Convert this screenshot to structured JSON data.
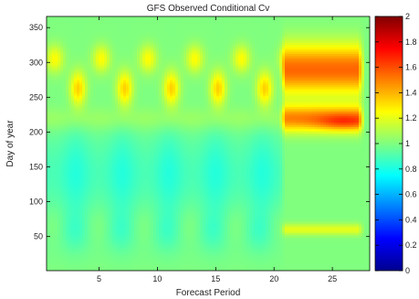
{
  "chart_data": {
    "type": "heatmap",
    "title": "GFS Observed Conditional Cv",
    "xlabel": "Forecast Period",
    "ylabel": "Day of year",
    "xlim": [
      0.5,
      28.2
    ],
    "ylim": [
      1,
      366
    ],
    "xticks": [
      5,
      10,
      15,
      20,
      25
    ],
    "yticks": [
      50,
      100,
      150,
      200,
      250,
      300,
      350
    ],
    "colorbar": {
      "colormap": "jet",
      "range": [
        0,
        2
      ],
      "ticks": [
        "0",
        "0.2",
        "0.4",
        "0.6",
        "0.8",
        "1",
        "1.2",
        "1.4",
        "1.6",
        "1.8",
        "2"
      ]
    },
    "approx_field": {
      "forecast_periods_1_to_20": {
        "baseline_cv": 1.0,
        "day_30_to_75": 0.95,
        "day_85_to_200": 0.9,
        "day_200_to_240": 1.05,
        "band_days_235_to_295_cv": 1.35,
        "band_days_290_to_335_cv": 1.25,
        "oscillation_period_forecast_periods": 4
      },
      "forecast_periods_21_to_28": {
        "baseline_cv": 1.0,
        "day_55_to_65": 1.2,
        "day_200_to_240": 1.5,
        "peak_day_215_period_26": 1.7,
        "day_260_to_320": 1.55
      }
    }
  }
}
